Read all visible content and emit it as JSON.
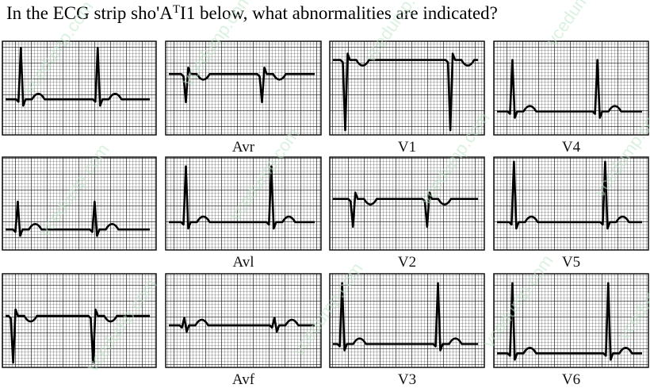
{
  "title": {
    "before": "In the ECG strip sho'A",
    "sup": "T",
    "after": "I1  below, what abnormalities are indicated?"
  },
  "leads": [
    "Avr",
    "V1",
    "V4",
    "Avl",
    "V2",
    "V5",
    "Avf",
    "V3",
    "V6"
  ],
  "watermark": "vcedump.com"
}
